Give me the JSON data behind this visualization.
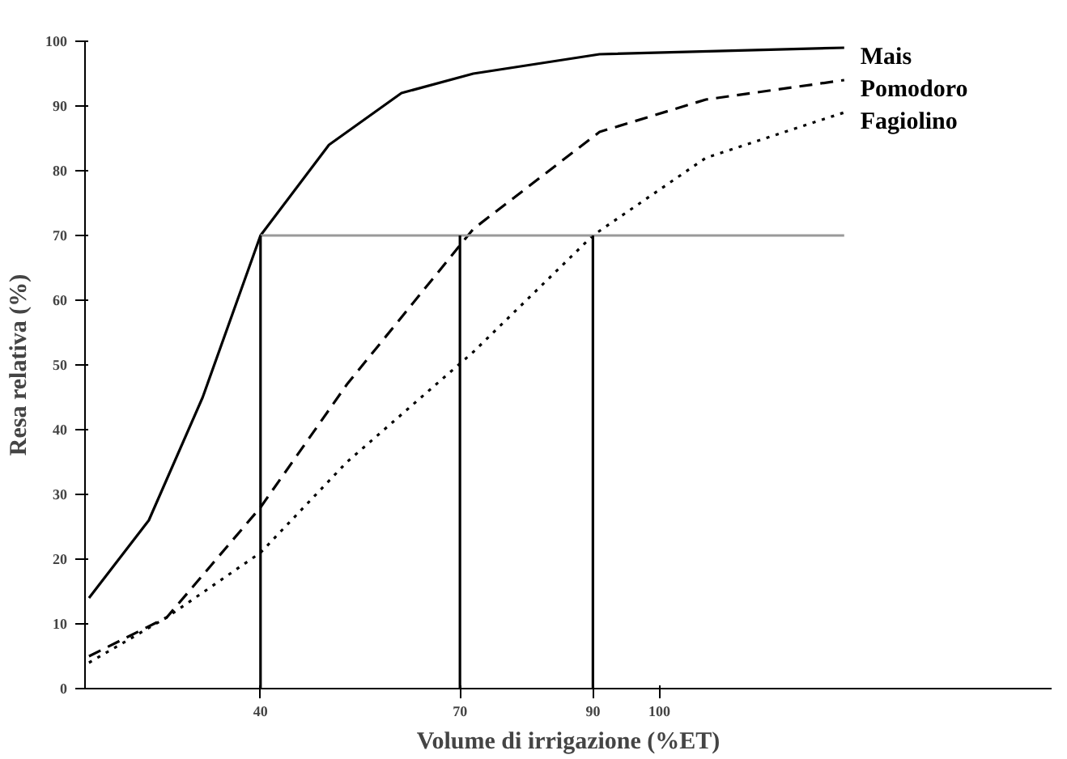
{
  "chart_data": {
    "type": "line",
    "xlabel": "Volume di irrigazione (%ET)",
    "ylabel": "Resa relativa (%)",
    "xlim": [
      13.6,
      159
    ],
    "ylim": [
      0,
      100
    ],
    "xticks": [
      40,
      70,
      90,
      100
    ],
    "yticks": [
      0,
      10,
      20,
      30,
      40,
      50,
      60,
      70,
      80,
      90,
      100
    ],
    "grid": false,
    "marker": "none",
    "series": [
      {
        "name": "Mais",
        "color": "#000000",
        "line_style": "solid",
        "x": [
          14.2,
          23.2,
          31.3,
          40,
          50.3,
          61.2,
          72,
          91,
          127.8
        ],
        "values": [
          14,
          26,
          45,
          70,
          84,
          92,
          95,
          98,
          99
        ]
      },
      {
        "name": "Pomodoro",
        "color": "#000000",
        "line_style": "dashed",
        "x": [
          14.2,
          25.9,
          40,
          53,
          72,
          91,
          107,
          127.8
        ],
        "values": [
          5,
          11,
          28,
          47,
          71,
          86,
          91,
          94
        ]
      },
      {
        "name": "Fagiolino",
        "color": "#000000",
        "line_style": "dotted",
        "x": [
          14.2,
          25.9,
          40,
          53,
          72,
          90,
          107,
          127.8
        ],
        "values": [
          4,
          11,
          21,
          35,
          52,
          70,
          82,
          89
        ]
      },
      {
        "color": "#999999",
        "line_style": "solid",
        "x": [
          40,
          127.8
        ],
        "values": [
          70,
          70
        ]
      },
      {
        "color": "#000000",
        "line_style": "solid",
        "x": [
          40,
          40
        ],
        "values": [
          0,
          70
        ]
      },
      {
        "color": "#000000",
        "line_style": "solid",
        "x": [
          70,
          70
        ],
        "values": [
          0,
          70
        ]
      },
      {
        "color": "#000000",
        "line_style": "solid",
        "x": [
          90,
          90
        ],
        "values": [
          0,
          70
        ]
      }
    ]
  }
}
